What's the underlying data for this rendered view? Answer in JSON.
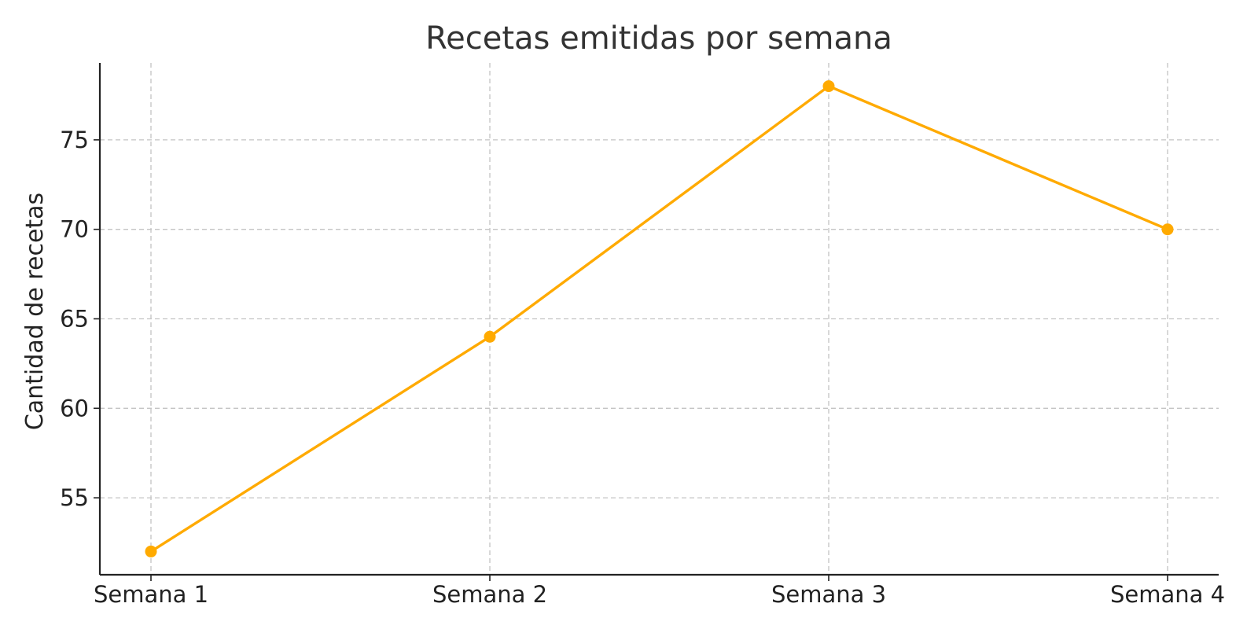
{
  "chart_data": {
    "type": "line",
    "title": "Recetas emitidas por semana",
    "xlabel": "",
    "ylabel": "Cantidad de recetas",
    "categories": [
      "Semana 1",
      "Semana 2",
      "Semana 3",
      "Semana 4"
    ],
    "series": [
      {
        "values": [
          52,
          64,
          78,
          70
        ],
        "color": "#FFAA00",
        "marker": "circle"
      }
    ],
    "ylim": [
      50.7,
      79.3
    ],
    "yticks": [
      55,
      60,
      65,
      70,
      75
    ],
    "grid": true,
    "legend": "none"
  }
}
